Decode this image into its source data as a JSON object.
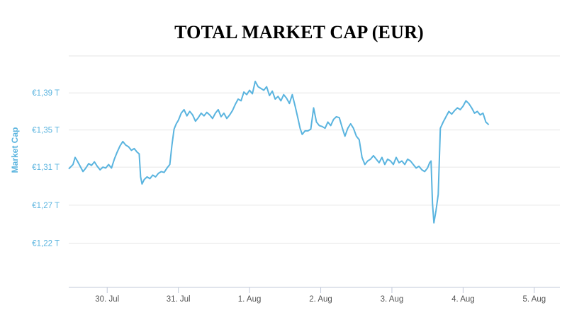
{
  "chart_data": {
    "type": "line",
    "title": "TOTAL MARKET CAP (EUR)",
    "xlabel": "",
    "ylabel": "Market Cap",
    "x_tick_labels": [
      "30. Jul",
      "31. Jul",
      "1. Aug",
      "2. Aug",
      "3. Aug",
      "4. Aug",
      "5. Aug"
    ],
    "y_tick_labels": [
      "€1,22 T",
      "€1,27 T",
      "€1,31 T",
      "€1,35 T",
      "€1,39 T"
    ],
    "y_tick_values": [
      1.225,
      1.268,
      1.311,
      1.353,
      1.395
    ],
    "ylim": [
      1.175,
      1.44
    ],
    "xlim": [
      -0.54,
      6.36
    ],
    "grid": true,
    "legend": "none",
    "series": [
      {
        "color": "#5ab4df",
        "points": [
          [
            -0.54,
            1.309
          ],
          [
            -0.48,
            1.314
          ],
          [
            -0.45,
            1.322
          ],
          [
            -0.42,
            1.318
          ],
          [
            -0.38,
            1.312
          ],
          [
            -0.34,
            1.306
          ],
          [
            -0.3,
            1.31
          ],
          [
            -0.26,
            1.315
          ],
          [
            -0.22,
            1.313
          ],
          [
            -0.18,
            1.317
          ],
          [
            -0.14,
            1.312
          ],
          [
            -0.1,
            1.308
          ],
          [
            -0.06,
            1.311
          ],
          [
            -0.02,
            1.31
          ],
          [
            0.02,
            1.314
          ],
          [
            0.06,
            1.31
          ],
          [
            0.1,
            1.32
          ],
          [
            0.14,
            1.328
          ],
          [
            0.18,
            1.335
          ],
          [
            0.22,
            1.34
          ],
          [
            0.26,
            1.336
          ],
          [
            0.3,
            1.334
          ],
          [
            0.34,
            1.33
          ],
          [
            0.38,
            1.332
          ],
          [
            0.42,
            1.328
          ],
          [
            0.45,
            1.326
          ],
          [
            0.47,
            1.3
          ],
          [
            0.49,
            1.292
          ],
          [
            0.52,
            1.297
          ],
          [
            0.56,
            1.3
          ],
          [
            0.6,
            1.298
          ],
          [
            0.64,
            1.302
          ],
          [
            0.68,
            1.3
          ],
          [
            0.72,
            1.304
          ],
          [
            0.76,
            1.306
          ],
          [
            0.8,
            1.305
          ],
          [
            0.84,
            1.31
          ],
          [
            0.88,
            1.314
          ],
          [
            0.91,
            1.336
          ],
          [
            0.94,
            1.354
          ],
          [
            0.97,
            1.36
          ],
          [
            1.0,
            1.364
          ],
          [
            1.04,
            1.372
          ],
          [
            1.08,
            1.376
          ],
          [
            1.12,
            1.369
          ],
          [
            1.16,
            1.374
          ],
          [
            1.2,
            1.37
          ],
          [
            1.24,
            1.363
          ],
          [
            1.28,
            1.367
          ],
          [
            1.32,
            1.372
          ],
          [
            1.36,
            1.369
          ],
          [
            1.4,
            1.373
          ],
          [
            1.44,
            1.37
          ],
          [
            1.48,
            1.366
          ],
          [
            1.52,
            1.372
          ],
          [
            1.56,
            1.376
          ],
          [
            1.6,
            1.368
          ],
          [
            1.64,
            1.372
          ],
          [
            1.68,
            1.366
          ],
          [
            1.72,
            1.37
          ],
          [
            1.76,
            1.375
          ],
          [
            1.8,
            1.382
          ],
          [
            1.84,
            1.388
          ],
          [
            1.88,
            1.386
          ],
          [
            1.92,
            1.396
          ],
          [
            1.96,
            1.393
          ],
          [
            2.0,
            1.398
          ],
          [
            2.04,
            1.394
          ],
          [
            2.08,
            1.408
          ],
          [
            2.12,
            1.402
          ],
          [
            2.16,
            1.4
          ],
          [
            2.2,
            1.398
          ],
          [
            2.24,
            1.402
          ],
          [
            2.28,
            1.392
          ],
          [
            2.32,
            1.397
          ],
          [
            2.36,
            1.388
          ],
          [
            2.4,
            1.391
          ],
          [
            2.44,
            1.386
          ],
          [
            2.48,
            1.393
          ],
          [
            2.52,
            1.389
          ],
          [
            2.56,
            1.383
          ],
          [
            2.6,
            1.393
          ],
          [
            2.64,
            1.38
          ],
          [
            2.68,
            1.366
          ],
          [
            2.71,
            1.355
          ],
          [
            2.74,
            1.348
          ],
          [
            2.78,
            1.352
          ],
          [
            2.82,
            1.352
          ],
          [
            2.86,
            1.354
          ],
          [
            2.9,
            1.378
          ],
          [
            2.94,
            1.362
          ],
          [
            2.98,
            1.358
          ],
          [
            3.02,
            1.357
          ],
          [
            3.06,
            1.355
          ],
          [
            3.1,
            1.362
          ],
          [
            3.14,
            1.358
          ],
          [
            3.18,
            1.365
          ],
          [
            3.22,
            1.368
          ],
          [
            3.26,
            1.367
          ],
          [
            3.3,
            1.356
          ],
          [
            3.34,
            1.346
          ],
          [
            3.38,
            1.355
          ],
          [
            3.42,
            1.36
          ],
          [
            3.46,
            1.355
          ],
          [
            3.5,
            1.346
          ],
          [
            3.54,
            1.342
          ],
          [
            3.58,
            1.322
          ],
          [
            3.62,
            1.314
          ],
          [
            3.66,
            1.318
          ],
          [
            3.7,
            1.32
          ],
          [
            3.74,
            1.324
          ],
          [
            3.78,
            1.32
          ],
          [
            3.82,
            1.316
          ],
          [
            3.86,
            1.322
          ],
          [
            3.9,
            1.314
          ],
          [
            3.94,
            1.32
          ],
          [
            3.98,
            1.318
          ],
          [
            4.02,
            1.314
          ],
          [
            4.06,
            1.322
          ],
          [
            4.1,
            1.316
          ],
          [
            4.14,
            1.318
          ],
          [
            4.18,
            1.314
          ],
          [
            4.22,
            1.32
          ],
          [
            4.26,
            1.318
          ],
          [
            4.3,
            1.314
          ],
          [
            4.34,
            1.31
          ],
          [
            4.38,
            1.312
          ],
          [
            4.42,
            1.308
          ],
          [
            4.46,
            1.306
          ],
          [
            4.5,
            1.31
          ],
          [
            4.53,
            1.316
          ],
          [
            4.55,
            1.318
          ],
          [
            4.57,
            1.27
          ],
          [
            4.59,
            1.248
          ],
          [
            4.62,
            1.262
          ],
          [
            4.65,
            1.28
          ],
          [
            4.68,
            1.355
          ],
          [
            4.72,
            1.362
          ],
          [
            4.76,
            1.368
          ],
          [
            4.8,
            1.374
          ],
          [
            4.84,
            1.371
          ],
          [
            4.88,
            1.375
          ],
          [
            4.92,
            1.378
          ],
          [
            4.96,
            1.376
          ],
          [
            5.0,
            1.38
          ],
          [
            5.04,
            1.386
          ],
          [
            5.08,
            1.383
          ],
          [
            5.12,
            1.378
          ],
          [
            5.16,
            1.372
          ],
          [
            5.2,
            1.374
          ],
          [
            5.24,
            1.37
          ],
          [
            5.28,
            1.372
          ],
          [
            5.32,
            1.362
          ],
          [
            5.36,
            1.359
          ]
        ]
      }
    ]
  }
}
